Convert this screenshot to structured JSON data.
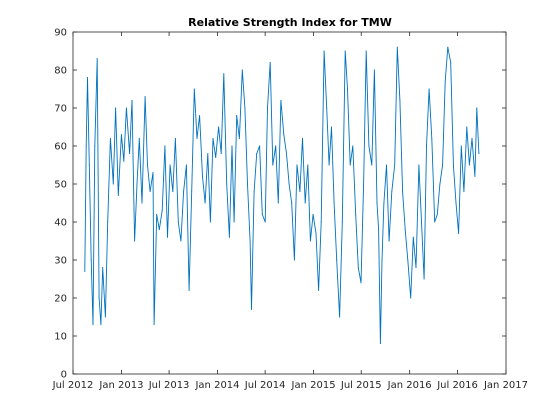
{
  "chart_data": {
    "type": "line",
    "title": "Relative Strength Index for TMW",
    "xlabel": "",
    "ylabel": "",
    "ylim": [
      0,
      90
    ],
    "xlim": [
      "2012-07-01",
      "2017-01-01"
    ],
    "grid": false,
    "legend": "none",
    "x_ticks": [
      {
        "date": "2012-07-01",
        "label": "Jul 2012"
      },
      {
        "date": "2013-01-01",
        "label": "Jan 2013"
      },
      {
        "date": "2013-07-01",
        "label": "Jul 2013"
      },
      {
        "date": "2014-01-01",
        "label": "Jan 2014"
      },
      {
        "date": "2014-07-01",
        "label": "Jul 2014"
      },
      {
        "date": "2015-01-01",
        "label": "Jan 2015"
      },
      {
        "date": "2015-07-01",
        "label": "Jul 2015"
      },
      {
        "date": "2016-01-01",
        "label": "Jan 2016"
      },
      {
        "date": "2016-07-01",
        "label": "Jul 2016"
      },
      {
        "date": "2017-01-01",
        "label": "Jan 2017"
      }
    ],
    "y_ticks": [
      0,
      10,
      20,
      30,
      40,
      50,
      60,
      70,
      80,
      90
    ],
    "series": [
      {
        "color": "#0072BD",
        "points": [
          [
            "2012-08-15",
            27
          ],
          [
            "2012-08-20",
            60
          ],
          [
            "2012-08-25",
            78
          ],
          [
            "2012-09-01",
            55
          ],
          [
            "2012-09-08",
            30
          ],
          [
            "2012-09-15",
            13
          ],
          [
            "2012-09-22",
            60
          ],
          [
            "2012-10-01",
            83
          ],
          [
            "2012-10-08",
            20
          ],
          [
            "2012-10-15",
            13
          ],
          [
            "2012-10-22",
            28
          ],
          [
            "2012-11-01",
            15
          ],
          [
            "2012-11-10",
            40
          ],
          [
            "2012-11-20",
            62
          ],
          [
            "2012-12-01",
            50
          ],
          [
            "2012-12-10",
            70
          ],
          [
            "2012-12-20",
            47
          ],
          [
            "2013-01-01",
            63
          ],
          [
            "2013-01-10",
            56
          ],
          [
            "2013-01-20",
            70
          ],
          [
            "2013-02-01",
            58
          ],
          [
            "2013-02-10",
            72
          ],
          [
            "2013-02-20",
            35
          ],
          [
            "2013-03-01",
            50
          ],
          [
            "2013-03-10",
            62
          ],
          [
            "2013-03-20",
            45
          ],
          [
            "2013-04-01",
            73
          ],
          [
            "2013-04-10",
            55
          ],
          [
            "2013-04-20",
            48
          ],
          [
            "2013-05-01",
            53
          ],
          [
            "2013-05-05",
            13
          ],
          [
            "2013-05-15",
            42
          ],
          [
            "2013-05-25",
            38
          ],
          [
            "2013-06-05",
            43
          ],
          [
            "2013-06-15",
            60
          ],
          [
            "2013-06-25",
            36
          ],
          [
            "2013-07-05",
            55
          ],
          [
            "2013-07-15",
            48
          ],
          [
            "2013-07-25",
            62
          ],
          [
            "2013-08-05",
            40
          ],
          [
            "2013-08-15",
            35
          ],
          [
            "2013-08-25",
            48
          ],
          [
            "2013-09-05",
            55
          ],
          [
            "2013-09-15",
            22
          ],
          [
            "2013-09-25",
            48
          ],
          [
            "2013-10-05",
            75
          ],
          [
            "2013-10-15",
            62
          ],
          [
            "2013-10-25",
            68
          ],
          [
            "2013-11-05",
            52
          ],
          [
            "2013-11-15",
            45
          ],
          [
            "2013-11-25",
            58
          ],
          [
            "2013-12-05",
            40
          ],
          [
            "2013-12-15",
            62
          ],
          [
            "2013-12-25",
            57
          ],
          [
            "2014-01-05",
            65
          ],
          [
            "2014-01-15",
            58
          ],
          [
            "2014-01-25",
            79
          ],
          [
            "2014-02-05",
            50
          ],
          [
            "2014-02-15",
            36
          ],
          [
            "2014-02-25",
            60
          ],
          [
            "2014-03-05",
            40
          ],
          [
            "2014-03-15",
            68
          ],
          [
            "2014-03-25",
            62
          ],
          [
            "2014-04-05",
            80
          ],
          [
            "2014-04-15",
            70
          ],
          [
            "2014-04-25",
            50
          ],
          [
            "2014-05-05",
            35
          ],
          [
            "2014-05-10",
            17
          ],
          [
            "2014-05-20",
            48
          ],
          [
            "2014-05-30",
            58
          ],
          [
            "2014-06-10",
            60
          ],
          [
            "2014-06-20",
            42
          ],
          [
            "2014-07-01",
            40
          ],
          [
            "2014-07-10",
            70
          ],
          [
            "2014-07-20",
            82
          ],
          [
            "2014-07-30",
            55
          ],
          [
            "2014-08-10",
            60
          ],
          [
            "2014-08-20",
            45
          ],
          [
            "2014-08-30",
            72
          ],
          [
            "2014-09-10",
            63
          ],
          [
            "2014-09-20",
            58
          ],
          [
            "2014-09-30",
            50
          ],
          [
            "2014-10-10",
            45
          ],
          [
            "2014-10-20",
            30
          ],
          [
            "2014-10-30",
            55
          ],
          [
            "2014-11-10",
            48
          ],
          [
            "2014-11-20",
            62
          ],
          [
            "2014-11-30",
            45
          ],
          [
            "2014-12-10",
            55
          ],
          [
            "2014-12-20",
            35
          ],
          [
            "2014-12-30",
            42
          ],
          [
            "2015-01-10",
            37
          ],
          [
            "2015-01-20",
            22
          ],
          [
            "2015-01-30",
            40
          ],
          [
            "2015-02-10",
            85
          ],
          [
            "2015-02-20",
            70
          ],
          [
            "2015-03-01",
            55
          ],
          [
            "2015-03-10",
            65
          ],
          [
            "2015-03-20",
            45
          ],
          [
            "2015-03-30",
            30
          ],
          [
            "2015-04-10",
            15
          ],
          [
            "2015-04-20",
            40
          ],
          [
            "2015-05-01",
            85
          ],
          [
            "2015-05-10",
            75
          ],
          [
            "2015-05-20",
            55
          ],
          [
            "2015-05-30",
            60
          ],
          [
            "2015-06-10",
            42
          ],
          [
            "2015-06-20",
            28
          ],
          [
            "2015-06-30",
            24
          ],
          [
            "2015-07-10",
            50
          ],
          [
            "2015-07-20",
            85
          ],
          [
            "2015-07-30",
            60
          ],
          [
            "2015-08-10",
            55
          ],
          [
            "2015-08-20",
            80
          ],
          [
            "2015-08-30",
            45
          ],
          [
            "2015-09-05",
            38
          ],
          [
            "2015-09-12",
            8
          ],
          [
            "2015-09-18",
            30
          ],
          [
            "2015-09-25",
            45
          ],
          [
            "2015-10-05",
            55
          ],
          [
            "2015-10-15",
            35
          ],
          [
            "2015-10-25",
            48
          ],
          [
            "2015-11-05",
            55
          ],
          [
            "2015-11-15",
            86
          ],
          [
            "2015-11-25",
            72
          ],
          [
            "2015-12-05",
            48
          ],
          [
            "2015-12-15",
            38
          ],
          [
            "2015-12-25",
            30
          ],
          [
            "2016-01-05",
            20
          ],
          [
            "2016-01-15",
            36
          ],
          [
            "2016-01-25",
            28
          ],
          [
            "2016-02-05",
            55
          ],
          [
            "2016-02-15",
            40
          ],
          [
            "2016-02-25",
            25
          ],
          [
            "2016-03-05",
            60
          ],
          [
            "2016-03-15",
            75
          ],
          [
            "2016-03-25",
            62
          ],
          [
            "2016-04-05",
            40
          ],
          [
            "2016-04-15",
            42
          ],
          [
            "2016-04-25",
            50
          ],
          [
            "2016-05-05",
            55
          ],
          [
            "2016-05-15",
            77
          ],
          [
            "2016-05-25",
            86
          ],
          [
            "2016-06-05",
            82
          ],
          [
            "2016-06-15",
            55
          ],
          [
            "2016-06-25",
            45
          ],
          [
            "2016-07-05",
            37
          ],
          [
            "2016-07-15",
            60
          ],
          [
            "2016-07-25",
            48
          ],
          [
            "2016-08-05",
            65
          ],
          [
            "2016-08-15",
            55
          ],
          [
            "2016-08-25",
            62
          ],
          [
            "2016-09-05",
            52
          ],
          [
            "2016-09-12",
            70
          ],
          [
            "2016-09-20",
            58
          ]
        ]
      }
    ]
  }
}
